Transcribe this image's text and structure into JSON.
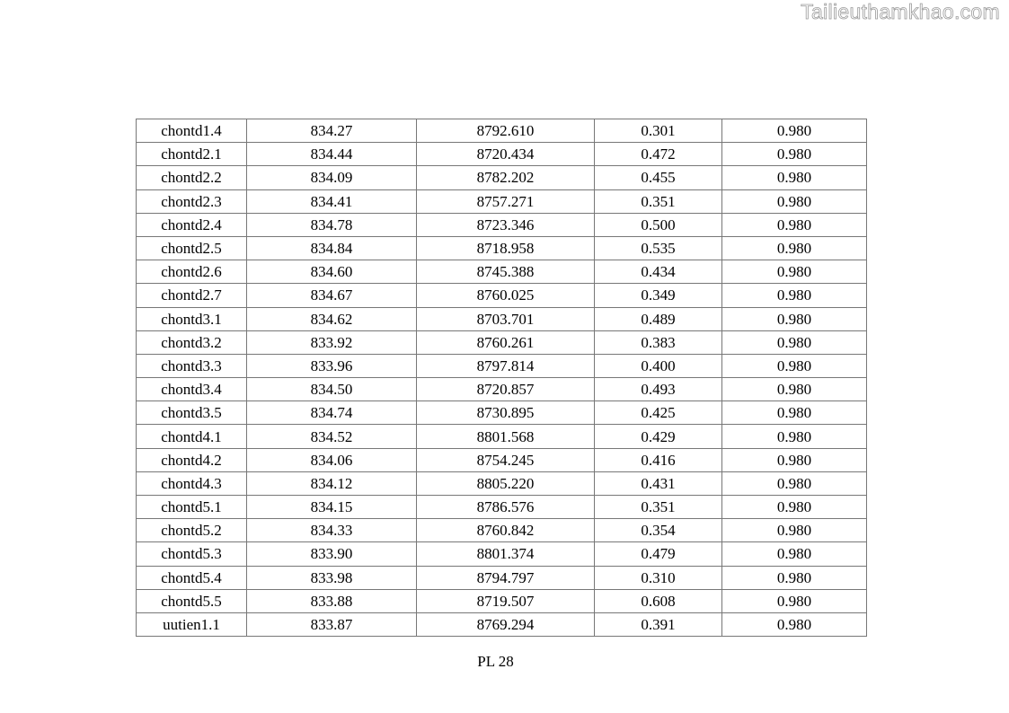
{
  "header": {
    "watermark": "Tailieuthamkhao.com"
  },
  "table": {
    "rows": [
      [
        "chontd1.4",
        "834.27",
        "8792.610",
        "0.301",
        "0.980"
      ],
      [
        "chontd2.1",
        "834.44",
        "8720.434",
        "0.472",
        "0.980"
      ],
      [
        "chontd2.2",
        "834.09",
        "8782.202",
        "0.455",
        "0.980"
      ],
      [
        "chontd2.3",
        "834.41",
        "8757.271",
        "0.351",
        "0.980"
      ],
      [
        "chontd2.4",
        "834.78",
        "8723.346",
        "0.500",
        "0.980"
      ],
      [
        "chontd2.5",
        "834.84",
        "8718.958",
        "0.535",
        "0.980"
      ],
      [
        "chontd2.6",
        "834.60",
        "8745.388",
        "0.434",
        "0.980"
      ],
      [
        "chontd2.7",
        "834.67",
        "8760.025",
        "0.349",
        "0.980"
      ],
      [
        "chontd3.1",
        "834.62",
        "8703.701",
        "0.489",
        "0.980"
      ],
      [
        "chontd3.2",
        "833.92",
        "8760.261",
        "0.383",
        "0.980"
      ],
      [
        "chontd3.3",
        "833.96",
        "8797.814",
        "0.400",
        "0.980"
      ],
      [
        "chontd3.4",
        "834.50",
        "8720.857",
        "0.493",
        "0.980"
      ],
      [
        "chontd3.5",
        "834.74",
        "8730.895",
        "0.425",
        "0.980"
      ],
      [
        "chontd4.1",
        "834.52",
        "8801.568",
        "0.429",
        "0.980"
      ],
      [
        "chontd4.2",
        "834.06",
        "8754.245",
        "0.416",
        "0.980"
      ],
      [
        "chontd4.3",
        "834.12",
        "8805.220",
        "0.431",
        "0.980"
      ],
      [
        "chontd5.1",
        "834.15",
        "8786.576",
        "0.351",
        "0.980"
      ],
      [
        "chontd5.2",
        "834.33",
        "8760.842",
        "0.354",
        "0.980"
      ],
      [
        "chontd5.3",
        "833.90",
        "8801.374",
        "0.479",
        "0.980"
      ],
      [
        "chontd5.4",
        "833.98",
        "8794.797",
        "0.310",
        "0.980"
      ],
      [
        "chontd5.5",
        "833.88",
        "8719.507",
        "0.608",
        "0.980"
      ],
      [
        "uutien1.1",
        "833.87",
        "8769.294",
        "0.391",
        "0.980"
      ]
    ]
  },
  "footer": {
    "page_label": "PL 28"
  }
}
